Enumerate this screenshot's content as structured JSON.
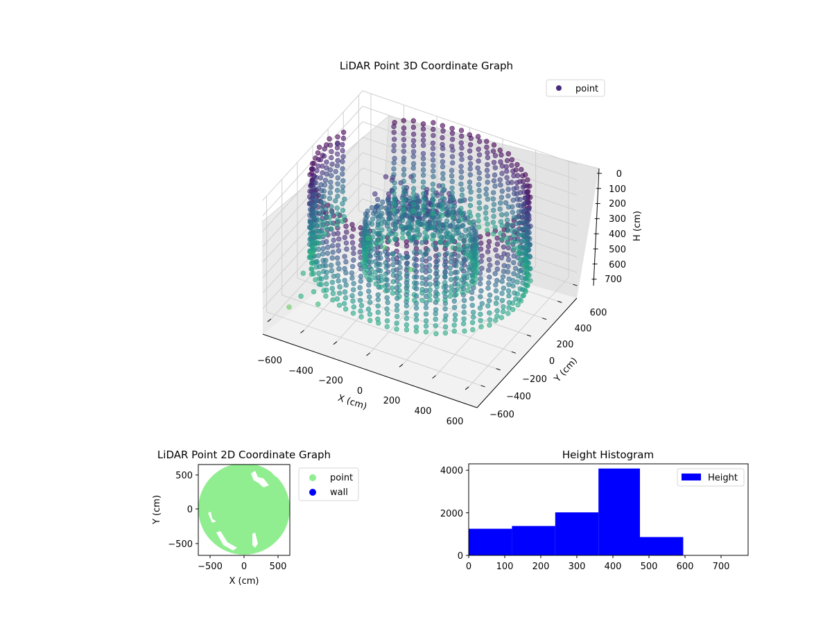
{
  "chart_data": [
    {
      "type": "scatter",
      "title": "LiDAR Point 3D Coordinate Graph",
      "projection": "3d",
      "xlabel": "X (cm)",
      "ylabel": "Y (cm)",
      "zlabel": "H (cm)",
      "xticks": [
        "−600",
        "−400",
        "−200",
        "0",
        "200",
        "400",
        "600"
      ],
      "yticks": [
        "−600",
        "−400",
        "−200",
        "0",
        "200",
        "400",
        "600"
      ],
      "zticks": [
        "0",
        "100",
        "200",
        "300",
        "400",
        "500",
        "600",
        "700"
      ],
      "xlim": [
        -650,
        650
      ],
      "ylim": [
        -650,
        650
      ],
      "zlim": [
        0,
        750
      ],
      "z_axis_inverted": true,
      "legend": {
        "placement": "top-right",
        "entries": [
          {
            "label": "point",
            "color": "#472c7a"
          }
        ]
      },
      "colormap": "viridis",
      "structures": [
        {
          "name": "outer wall ring",
          "radius": 600,
          "h": [
            0,
            580
          ]
        },
        {
          "name": "inner ring",
          "radius": 310,
          "h": [
            300,
            560
          ]
        },
        {
          "name": "central core",
          "x": -20,
          "y": 60,
          "h": [
            120,
            420
          ]
        }
      ],
      "outlier_points": [
        {
          "x": -640,
          "y": 300,
          "h": 150
        },
        {
          "x": -620,
          "y": -80,
          "h": 640
        },
        {
          "x": -540,
          "y": -360,
          "h": 590
        },
        {
          "x": -420,
          "y": -480,
          "h": 600
        },
        {
          "x": -380,
          "y": -510,
          "h": 650
        },
        {
          "x": -460,
          "y": -560,
          "h": 600
        },
        {
          "x": -560,
          "y": -500,
          "h": 740
        },
        {
          "x": -420,
          "y": 230,
          "h": 640
        },
        {
          "x": -330,
          "y": 250,
          "h": 680
        },
        {
          "x": -130,
          "y": 160,
          "h": 700
        }
      ],
      "grid": true
    },
    {
      "type": "scatter",
      "title": "LiDAR Point 2D Coordinate Graph",
      "xlabel": "X (cm)",
      "ylabel": "Y (cm)",
      "xlim": [
        -650,
        650
      ],
      "ylim": [
        -650,
        650
      ],
      "xticks": [
        "−500",
        "0",
        "500"
      ],
      "yticks": [
        "−500",
        "0",
        "500"
      ],
      "series": [
        {
          "name": "point",
          "color": "#90ee90",
          "region": "filled disc",
          "center": [
            0,
            0
          ],
          "radius": 650
        },
        {
          "name": "wall",
          "color": "#0000ff",
          "count": 0
        }
      ],
      "legend": {
        "placement": "outside-right"
      }
    },
    {
      "type": "bar",
      "title": "Height Histogram",
      "xlabel": "",
      "ylabel": "",
      "bin_edges": [
        0,
        120,
        240,
        360,
        475,
        595
      ],
      "values": [
        1250,
        1380,
        2020,
        4080,
        860
      ],
      "color": "#0000ff",
      "xlim": [
        0,
        775
      ],
      "ylim": [
        0,
        4300
      ],
      "xticks": [
        "0",
        "100",
        "200",
        "300",
        "400",
        "500",
        "600",
        "700"
      ],
      "yticks": [
        "0",
        "2000",
        "4000"
      ],
      "legend": {
        "placement": "top-right",
        "entries": [
          {
            "label": "Height",
            "color": "#0000ff"
          }
        ]
      }
    }
  ]
}
